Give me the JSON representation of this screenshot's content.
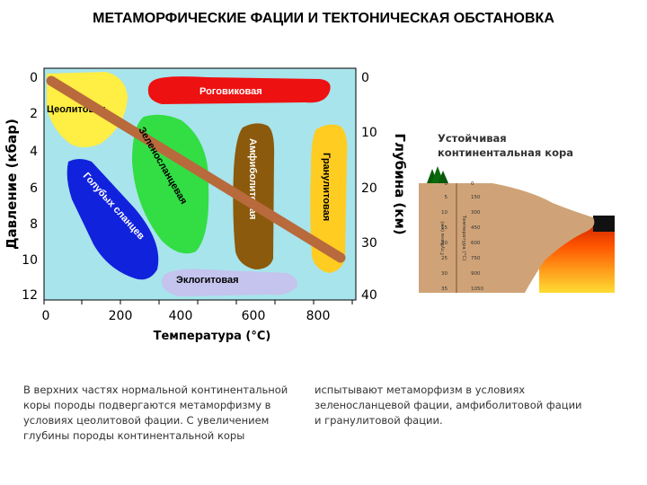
{
  "title": "МЕТАМОРФИЧЕСКИЕ ФАЦИИ И ТЕКТОНИЧЕСКАЯ ОБСТАНОВКА",
  "chart": {
    "y_left_label": "Давление (кбар)",
    "y_right_label": "Глубина (км)",
    "x_label": "Температура (°С)",
    "x_ticks": [
      "0",
      "200",
      "400",
      "600",
      "800"
    ],
    "y_left_ticks": [
      "0",
      "2",
      "4",
      "6",
      "8",
      "10",
      "12"
    ],
    "y_right_ticks": [
      "0",
      "10",
      "20",
      "30",
      "40"
    ],
    "facies": {
      "zeolite": "Цеолитовая",
      "hornfels": "Роговиковая",
      "greenschist": "Зеленосланцевая",
      "blueschist": "Голубых сланцев",
      "amphibolite": "Амфиболитовая",
      "granulite": "Гранулитовая",
      "eclogite": "Эклогитовая"
    },
    "colors": {
      "background": "#a8e4ec",
      "zeolite": "#ffee44",
      "hornfels": "#ee1111",
      "greenschist": "#33dd44",
      "blueschist": "#1122dd",
      "amphibolite": "#8b5a0c",
      "granulite": "#ffcc22",
      "eclogite": "#c4c4ee",
      "geotherm": "#b86a3c"
    }
  },
  "crust": {
    "title_line1": "Устойчивая",
    "title_line2": "континентальная кора",
    "depth_label": "Глубина (км)",
    "temp_label": "Температура (°С)",
    "depths": [
      "0",
      "5",
      "10",
      "15",
      "20",
      "25",
      "30",
      "35"
    ],
    "temps": [
      "0",
      "150",
      "300",
      "450",
      "600",
      "750",
      "900",
      "1050"
    ]
  },
  "text": {
    "left": [
      "В верхних частях нормальной континентальной",
      "коры породы подвергаются метаморфизму в",
      "условиях цеолитовой фации. С увеличением",
      "глубины породы континентальной коры"
    ],
    "right": [
      "испытывают метаморфизм в условиях",
      "зеленосланцевой фации, амфиболитовой фации",
      "и гранулитовой фации."
    ]
  }
}
